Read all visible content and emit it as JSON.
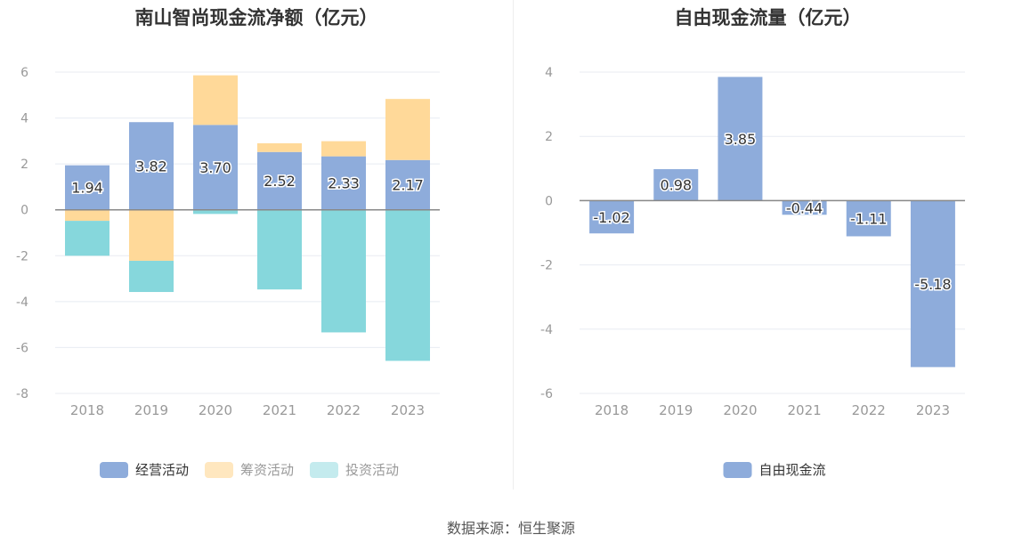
{
  "chart_data": [
    {
      "type": "bar",
      "stacked": true,
      "title": "南山智尚现金流净额（亿元）",
      "categories": [
        "2018",
        "2019",
        "2020",
        "2021",
        "2022",
        "2023"
      ],
      "ylim": [
        -8,
        6
      ],
      "yticks": [
        -8,
        -6,
        -4,
        -2,
        0,
        2,
        4,
        6
      ],
      "grid": true,
      "legend_position": "bottom",
      "series": [
        {
          "name": "经营活动",
          "color": "#8eacdb",
          "values": [
            1.94,
            3.82,
            3.7,
            2.52,
            2.33,
            2.17
          ],
          "labels": [
            "1.94",
            "3.82",
            "3.70",
            "2.52",
            "2.33",
            "2.17"
          ]
        },
        {
          "name": "筹资活动",
          "color": "#ffd999",
          "values": [
            -0.48,
            -2.22,
            2.16,
            0.38,
            0.66,
            2.66
          ]
        },
        {
          "name": "投资活动",
          "color": "#86d7dc",
          "values": [
            -1.52,
            -1.36,
            -0.18,
            -3.47,
            -5.34,
            -6.58
          ]
        }
      ]
    },
    {
      "type": "bar",
      "title": "自由现金流量（亿元）",
      "categories": [
        "2018",
        "2019",
        "2020",
        "2021",
        "2022",
        "2023"
      ],
      "ylim": [
        -6,
        4
      ],
      "yticks": [
        -6,
        -4,
        -2,
        0,
        2,
        4
      ],
      "grid": true,
      "legend_position": "bottom",
      "series": [
        {
          "name": "自由现金流",
          "color": "#8eacdb",
          "values": [
            -1.02,
            0.98,
            3.85,
            -0.44,
            -1.11,
            -5.18
          ],
          "labels": [
            "-1.02",
            "0.98",
            "3.85",
            "-0.44",
            "-1.11",
            "-5.18"
          ]
        }
      ]
    }
  ],
  "source": "数据来源：恒生聚源"
}
